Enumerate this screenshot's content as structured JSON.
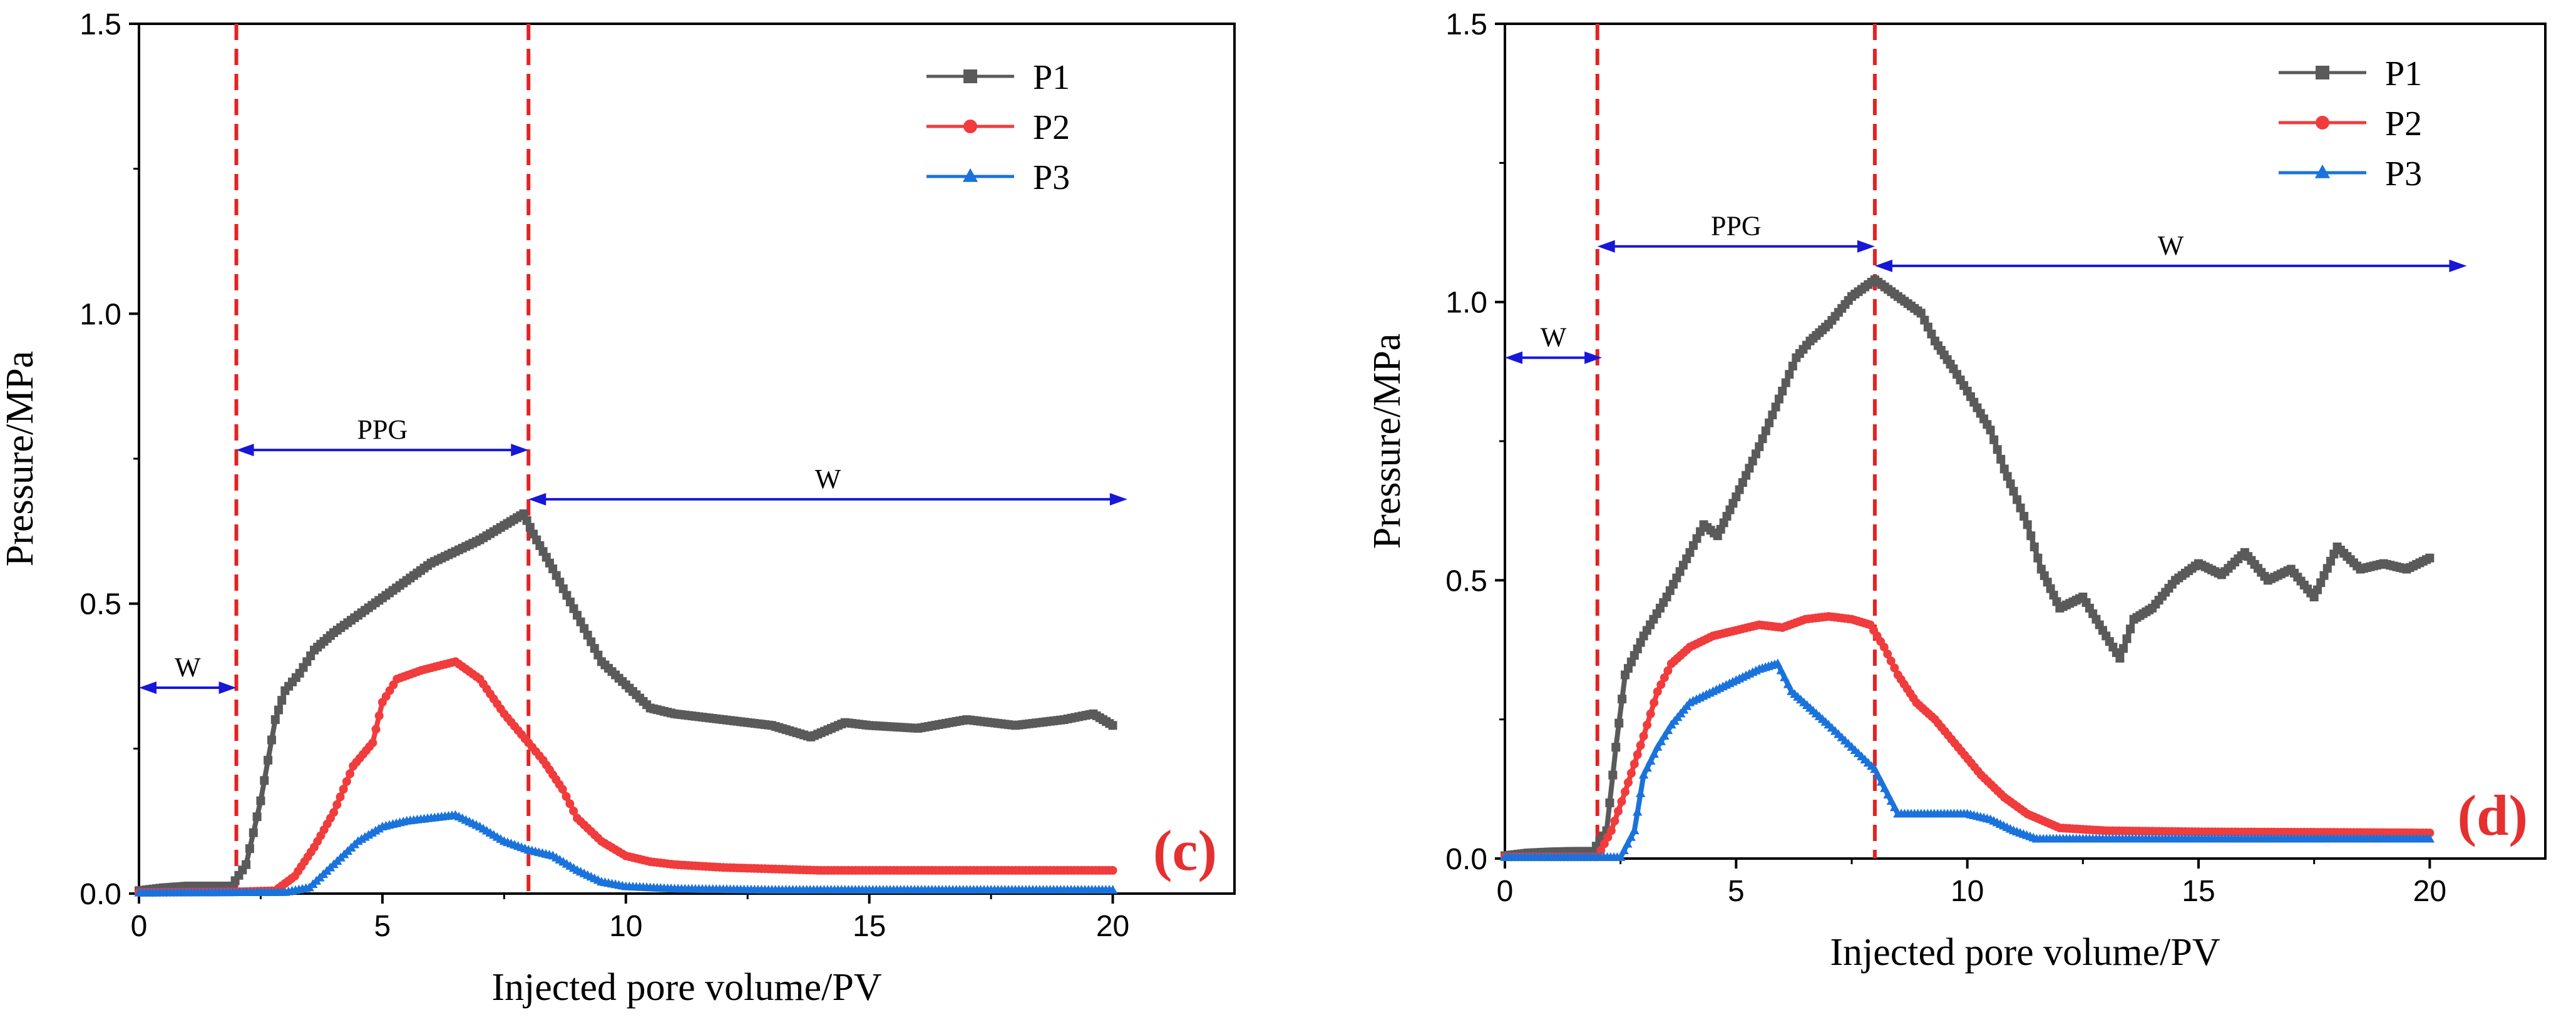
{
  "colors": {
    "p1": "#5a5a5a",
    "p2": "#f03c3c",
    "p3": "#1a73dc",
    "divider": "#e52222",
    "arrow": "#1717d8",
    "axis": "#000000",
    "panel_label": "#e53030"
  },
  "chart_data": [
    {
      "type": "scatter",
      "panel_label": "(c)",
      "xlabel": "Injected pore volume/PV",
      "ylabel": "Pressure/MPa",
      "xlim": [
        0,
        22.5
      ],
      "ylim": [
        0,
        1.5
      ],
      "xticks": [
        "0",
        "5",
        "10",
        "15",
        "20"
      ],
      "yticks": [
        "0.0",
        "0.5",
        "1.0",
        "1.5"
      ],
      "legend": [
        "P1",
        "P2",
        "P3"
      ],
      "legend_position": "top-right",
      "dividers": [
        2,
        8
      ],
      "annotations": [
        {
          "text": "W",
          "x_from": 0,
          "x_to": 2,
          "y": 0.355
        },
        {
          "text": "PPG",
          "x_from": 2,
          "x_to": 8,
          "y": 0.765
        },
        {
          "text": "W",
          "x_from": 8,
          "x_to": 20.3,
          "y": 0.68
        }
      ],
      "series": [
        {
          "name": "P1",
          "marker": "square",
          "points": [
            [
              0,
              0.005
            ],
            [
              0.5,
              0.01
            ],
            [
              1,
              0.013
            ],
            [
              1.5,
              0.013
            ],
            [
              1.9,
              0.013
            ],
            [
              2.2,
              0.05
            ],
            [
              2.5,
              0.16
            ],
            [
              2.8,
              0.3
            ],
            [
              3,
              0.35
            ],
            [
              3.3,
              0.38
            ],
            [
              3.6,
              0.42
            ],
            [
              4,
              0.45
            ],
            [
              4.5,
              0.48
            ],
            [
              5,
              0.51
            ],
            [
              5.5,
              0.54
            ],
            [
              6,
              0.57
            ],
            [
              6.5,
              0.59
            ],
            [
              7,
              0.61
            ],
            [
              7.5,
              0.635
            ],
            [
              7.9,
              0.655
            ],
            [
              8.1,
              0.62
            ],
            [
              8.5,
              0.56
            ],
            [
              9,
              0.48
            ],
            [
              9.5,
              0.4
            ],
            [
              10,
              0.36
            ],
            [
              10.5,
              0.32
            ],
            [
              11,
              0.31
            ],
            [
              12,
              0.3
            ],
            [
              13,
              0.29
            ],
            [
              13.8,
              0.27
            ],
            [
              14.5,
              0.295
            ],
            [
              15,
              0.29
            ],
            [
              16,
              0.285
            ],
            [
              17,
              0.3
            ],
            [
              18,
              0.29
            ],
            [
              19,
              0.3
            ],
            [
              19.6,
              0.31
            ],
            [
              20,
              0.29
            ]
          ]
        },
        {
          "name": "P2",
          "marker": "circle",
          "points": [
            [
              0,
              0.002
            ],
            [
              2,
              0.003
            ],
            [
              2.8,
              0.005
            ],
            [
              3.2,
              0.03
            ],
            [
              3.6,
              0.08
            ],
            [
              4,
              0.14
            ],
            [
              4.4,
              0.22
            ],
            [
              4.8,
              0.26
            ],
            [
              5,
              0.33
            ],
            [
              5.3,
              0.37
            ],
            [
              5.8,
              0.385
            ],
            [
              6.5,
              0.4
            ],
            [
              7,
              0.37
            ],
            [
              7.5,
              0.31
            ],
            [
              8,
              0.26
            ],
            [
              8.3,
              0.23
            ],
            [
              8.7,
              0.18
            ],
            [
              9,
              0.13
            ],
            [
              9.5,
              0.09
            ],
            [
              10,
              0.065
            ],
            [
              10.5,
              0.055
            ],
            [
              11,
              0.05
            ],
            [
              12,
              0.045
            ],
            [
              14,
              0.04
            ],
            [
              16,
              0.04
            ],
            [
              18,
              0.04
            ],
            [
              20,
              0.04
            ]
          ]
        },
        {
          "name": "P3",
          "marker": "triangle",
          "points": [
            [
              0,
              0.001
            ],
            [
              3,
              0.002
            ],
            [
              3.5,
              0.01
            ],
            [
              4,
              0.05
            ],
            [
              4.5,
              0.09
            ],
            [
              5,
              0.115
            ],
            [
              5.5,
              0.125
            ],
            [
              6,
              0.13
            ],
            [
              6.5,
              0.135
            ],
            [
              7,
              0.115
            ],
            [
              7.5,
              0.09
            ],
            [
              8,
              0.075
            ],
            [
              8.5,
              0.065
            ],
            [
              9,
              0.04
            ],
            [
              9.5,
              0.02
            ],
            [
              10,
              0.012
            ],
            [
              11,
              0.008
            ],
            [
              13,
              0.006
            ],
            [
              15,
              0.006
            ],
            [
              17,
              0.006
            ],
            [
              20,
              0.006
            ]
          ]
        }
      ]
    },
    {
      "type": "scatter",
      "panel_label": "(d)",
      "xlabel": "Injected pore volume/PV",
      "ylabel": "Pressure/MPa",
      "xlim": [
        0,
        22.5
      ],
      "ylim": [
        0,
        1.5
      ],
      "xticks": [
        "0",
        "5",
        "10",
        "15",
        "20"
      ],
      "yticks": [
        "0.0",
        "0.5",
        "1.0",
        "1.5"
      ],
      "legend": [
        "P1",
        "P2",
        "P3"
      ],
      "legend_position": "top-right",
      "dividers": [
        2,
        8
      ],
      "annotations": [
        {
          "text": "W",
          "x_from": 0,
          "x_to": 2.1,
          "y": 0.9
        },
        {
          "text": "PPG",
          "x_from": 2,
          "x_to": 8,
          "y": 1.1
        },
        {
          "text": "W",
          "x_from": 8,
          "x_to": 20.8,
          "y": 1.065
        }
      ],
      "series": [
        {
          "name": "P1",
          "marker": "square",
          "points": [
            [
              0,
              0.005
            ],
            [
              0.5,
              0.01
            ],
            [
              1,
              0.012
            ],
            [
              1.5,
              0.013
            ],
            [
              1.9,
              0.013
            ],
            [
              2.2,
              0.05
            ],
            [
              2.4,
              0.2
            ],
            [
              2.6,
              0.33
            ],
            [
              3,
              0.4
            ],
            [
              3.5,
              0.47
            ],
            [
              4,
              0.55
            ],
            [
              4.3,
              0.6
            ],
            [
              4.6,
              0.58
            ],
            [
              5,
              0.65
            ],
            [
              5.5,
              0.74
            ],
            [
              6,
              0.84
            ],
            [
              6.3,
              0.9
            ],
            [
              6.6,
              0.93
            ],
            [
              7,
              0.96
            ],
            [
              7.5,
              1.01
            ],
            [
              8,
              1.04
            ],
            [
              8.5,
              1.01
            ],
            [
              9,
              0.98
            ],
            [
              9.3,
              0.93
            ],
            [
              9.7,
              0.88
            ],
            [
              10,
              0.84
            ],
            [
              10.5,
              0.77
            ],
            [
              10.8,
              0.7
            ],
            [
              11,
              0.66
            ],
            [
              11.3,
              0.6
            ],
            [
              11.6,
              0.52
            ],
            [
              12,
              0.45
            ],
            [
              12.5,
              0.47
            ],
            [
              13,
              0.4
            ],
            [
              13.3,
              0.36
            ],
            [
              13.6,
              0.43
            ],
            [
              14,
              0.45
            ],
            [
              14.5,
              0.5
            ],
            [
              15,
              0.53
            ],
            [
              15.5,
              0.51
            ],
            [
              16,
              0.55
            ],
            [
              16.5,
              0.5
            ],
            [
              17,
              0.52
            ],
            [
              17.5,
              0.47
            ],
            [
              18,
              0.56
            ],
            [
              18.5,
              0.52
            ],
            [
              19,
              0.53
            ],
            [
              19.5,
              0.52
            ],
            [
              20,
              0.54
            ]
          ]
        },
        {
          "name": "P2",
          "marker": "circle",
          "points": [
            [
              0,
              0.003
            ],
            [
              2,
              0.003
            ],
            [
              2.3,
              0.05
            ],
            [
              2.6,
              0.12
            ],
            [
              3,
              0.22
            ],
            [
              3.3,
              0.3
            ],
            [
              3.6,
              0.35
            ],
            [
              4,
              0.38
            ],
            [
              4.5,
              0.4
            ],
            [
              5,
              0.41
            ],
            [
              5.5,
              0.42
            ],
            [
              6,
              0.415
            ],
            [
              6.5,
              0.43
            ],
            [
              7,
              0.435
            ],
            [
              7.5,
              0.43
            ],
            [
              7.9,
              0.42
            ],
            [
              8.2,
              0.38
            ],
            [
              8.5,
              0.33
            ],
            [
              8.9,
              0.28
            ],
            [
              9.3,
              0.25
            ],
            [
              9.8,
              0.2
            ],
            [
              10.3,
              0.15
            ],
            [
              10.8,
              0.11
            ],
            [
              11.3,
              0.08
            ],
            [
              12,
              0.055
            ],
            [
              13,
              0.05
            ],
            [
              15,
              0.048
            ],
            [
              18,
              0.047
            ],
            [
              20,
              0.046
            ]
          ]
        },
        {
          "name": "P3",
          "marker": "triangle",
          "points": [
            [
              0,
              0.002
            ],
            [
              2.5,
              0.002
            ],
            [
              2.8,
              0.05
            ],
            [
              3,
              0.15
            ],
            [
              3.3,
              0.2
            ],
            [
              3.6,
              0.24
            ],
            [
              4,
              0.28
            ],
            [
              4.5,
              0.3
            ],
            [
              5,
              0.32
            ],
            [
              5.5,
              0.34
            ],
            [
              5.9,
              0.35
            ],
            [
              6.2,
              0.3
            ],
            [
              6.6,
              0.27
            ],
            [
              7,
              0.24
            ],
            [
              7.5,
              0.2
            ],
            [
              8,
              0.16
            ],
            [
              8.5,
              0.08
            ],
            [
              9,
              0.08
            ],
            [
              10,
              0.08
            ],
            [
              10.5,
              0.07
            ],
            [
              11,
              0.05
            ],
            [
              11.5,
              0.035
            ],
            [
              12,
              0.035
            ],
            [
              15,
              0.035
            ],
            [
              18,
              0.035
            ],
            [
              20,
              0.035
            ]
          ]
        }
      ]
    }
  ]
}
